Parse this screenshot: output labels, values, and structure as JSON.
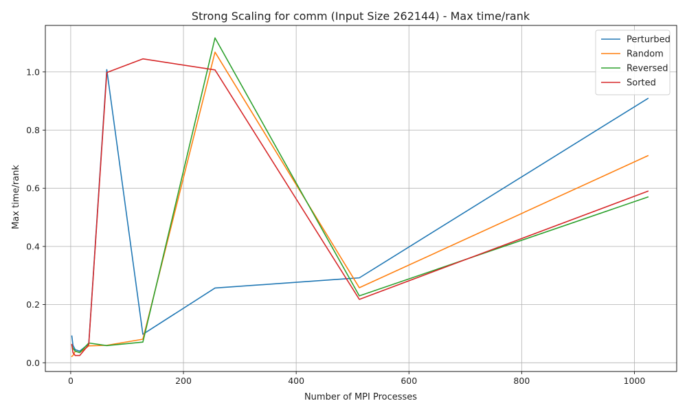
{
  "chart_data": {
    "type": "line",
    "title": "Strong Scaling for comm (Input Size 262144) - Max time/rank",
    "xlabel": "Number of MPI Processes",
    "ylabel": "Max time/rank",
    "xlim": [
      -45,
      1075
    ],
    "ylim": [
      -0.03,
      1.16
    ],
    "xticks": [
      0,
      200,
      400,
      600,
      800,
      1000
    ],
    "yticks": [
      0.0,
      0.2,
      0.4,
      0.6,
      0.8,
      1.0
    ],
    "grid": true,
    "legend_position": "top-right",
    "x": [
      2,
      4,
      8,
      16,
      32,
      64,
      128,
      256,
      512,
      1024
    ],
    "series": [
      {
        "name": "Perturbed",
        "color": "#1f77b4",
        "values": [
          0.092,
          0.06,
          0.045,
          0.04,
          0.065,
          1.008,
          0.098,
          0.257,
          0.292,
          0.909
        ]
      },
      {
        "name": "Random",
        "color": "#ff7f0e",
        "values": [
          0.022,
          0.025,
          0.04,
          0.035,
          0.058,
          0.06,
          0.081,
          1.068,
          0.258,
          0.712
        ]
      },
      {
        "name": "Reversed",
        "color": "#2ca02c",
        "values": [
          0.06,
          0.05,
          0.04,
          0.035,
          0.068,
          0.059,
          0.071,
          1.117,
          0.23,
          0.57
        ]
      },
      {
        "name": "Sorted",
        "color": "#d62728",
        "values": [
          0.063,
          0.035,
          0.025,
          0.025,
          0.062,
          0.998,
          1.045,
          1.007,
          0.218,
          0.59
        ]
      }
    ]
  }
}
